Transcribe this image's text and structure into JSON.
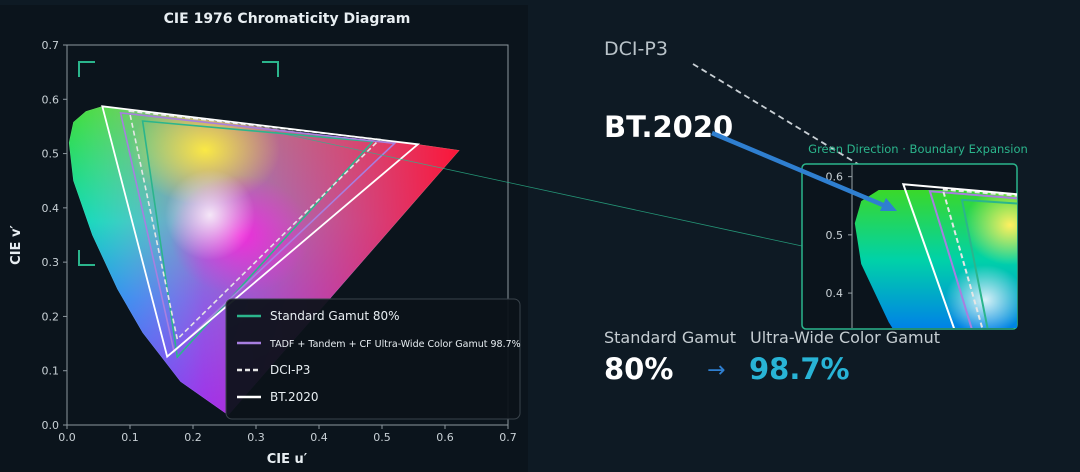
{
  "chart_data": {
    "type": "scatter",
    "title": "CIE 1976 Chromaticity Diagram",
    "xlabel": "CIE u′",
    "ylabel": "CIE v′",
    "xlim": [
      0,
      0.7
    ],
    "ylim": [
      0,
      0.7
    ],
    "xticks": [
      "0.0",
      "0.1",
      "0.2",
      "0.3",
      "0.4",
      "0.5",
      "0.6",
      "0.7"
    ],
    "yticks": [
      "0.0",
      "0.1",
      "0.2",
      "0.3",
      "0.4",
      "0.5",
      "0.6",
      "0.7"
    ],
    "grid": false,
    "legend_position": "bottom-right",
    "series": [
      {
        "name": "Standard Gamut 80%",
        "color": "#2bb58c",
        "dash": "solid",
        "points": [
          [
            0.12,
            0.56
          ],
          [
            0.485,
            0.522
          ],
          [
            0.175,
            0.125
          ]
        ]
      },
      {
        "name": "TADF + Tandem + CF Ultra-Wide Color Gamut 98.7%",
        "color": "#a77fe0",
        "dash": "solid",
        "points": [
          [
            0.085,
            0.575
          ],
          [
            0.52,
            0.519
          ],
          [
            0.17,
            0.135
          ]
        ]
      },
      {
        "name": "DCI-P3",
        "color": "#e6e6e6",
        "dash": "dashed",
        "points": [
          [
            0.099,
            0.578
          ],
          [
            0.496,
            0.526
          ],
          [
            0.175,
            0.158
          ]
        ]
      },
      {
        "name": "BT.2020",
        "color": "#ffffff",
        "dash": "solid",
        "points": [
          [
            0.056,
            0.587
          ],
          [
            0.557,
            0.517
          ],
          [
            0.159,
            0.126
          ]
        ]
      }
    ]
  },
  "callouts": {
    "dci_label": "DCI-P3",
    "bt_label": "BT.2020",
    "zoom_title": "Green Direction · Boundary Expansion",
    "zoom_yticks": [
      "0.6",
      "0.5",
      "0.4"
    ],
    "standard_label": "Standard Gamut",
    "standard_value": "80%",
    "arrow": "→",
    "ultra_label": "Ultra-Wide Color Gamut",
    "ultra_value": "98.7%"
  },
  "colors": {
    "background": "#0e1a24",
    "accent_teal": "#2bb58c",
    "accent_cyan": "#28b4d6",
    "arrow_blue": "#2f7fd0"
  }
}
